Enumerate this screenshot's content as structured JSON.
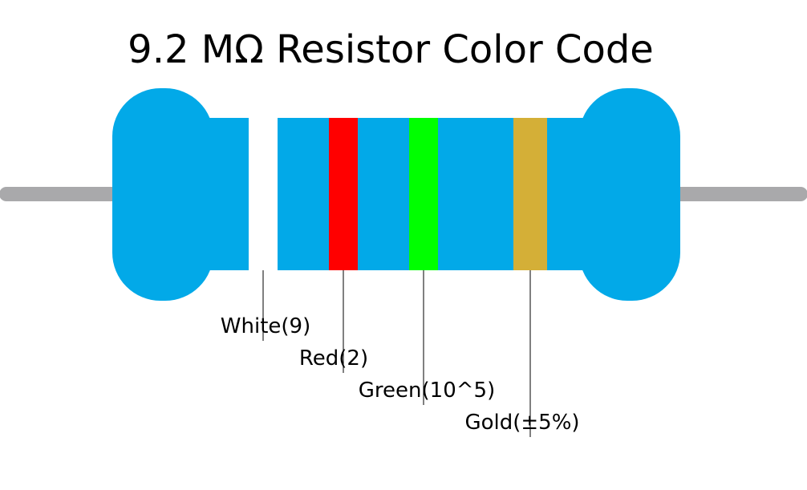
{
  "title": "9.2 MΩ Resistor Color Code",
  "bands": [
    {
      "label": "White(9)",
      "color": "#ffffff"
    },
    {
      "label": "Red(2)",
      "color": "#ff0000"
    },
    {
      "label": "Green(10^5)",
      "color": "#00ff00"
    },
    {
      "label": "Gold(±5%)",
      "color": "#d4af37"
    }
  ]
}
